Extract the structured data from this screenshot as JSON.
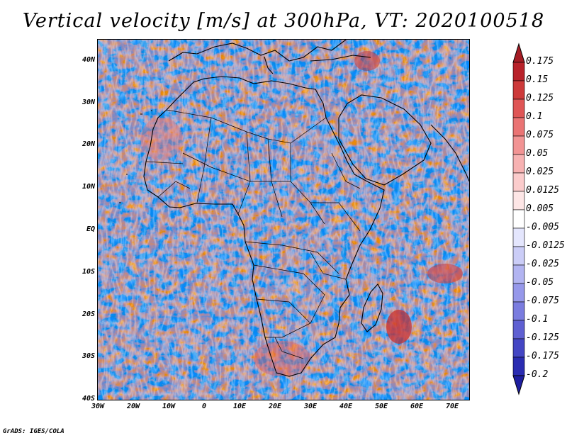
{
  "title": "Vertical velocity [m/s] at 300hPa, VT: 2020100518",
  "credit": "GrADS: IGES/COLA",
  "map": {
    "region": "Africa",
    "lat_range": [
      -40,
      45
    ],
    "lon_range": [
      -30,
      75
    ],
    "lat_ticks": [
      "40N",
      "30N",
      "20N",
      "10N",
      "EQ",
      "10S",
      "20S",
      "30S",
      "40S"
    ],
    "lon_ticks": [
      "30W",
      "20W",
      "10W",
      "0",
      "10E",
      "20E",
      "30E",
      "40E",
      "50E",
      "60E",
      "70E"
    ]
  },
  "colorbar": {
    "labels": [
      "0.175",
      "0.15",
      "0.125",
      "0.1",
      "0.075",
      "0.05",
      "0.025",
      "0.0125",
      "0.005",
      "-0.005",
      "-0.0125",
      "-0.025",
      "-0.05",
      "-0.075",
      "-0.1",
      "-0.125",
      "-0.175",
      "-0.2"
    ],
    "colors": [
      "#b8222a",
      "#cd3a3a",
      "#df5656",
      "#ea7474",
      "#f29494",
      "#f7b2b2",
      "#fbcccc",
      "#fde6e6",
      "#ffffff",
      "#e4e6fd",
      "#cbcdf7",
      "#b2b4f1",
      "#9698ea",
      "#7a7cdf",
      "#5f60d2",
      "#4446c4",
      "#2a2cb1"
    ],
    "top_color": "#a51c24",
    "bottom_color": "#1e1ea0"
  }
}
